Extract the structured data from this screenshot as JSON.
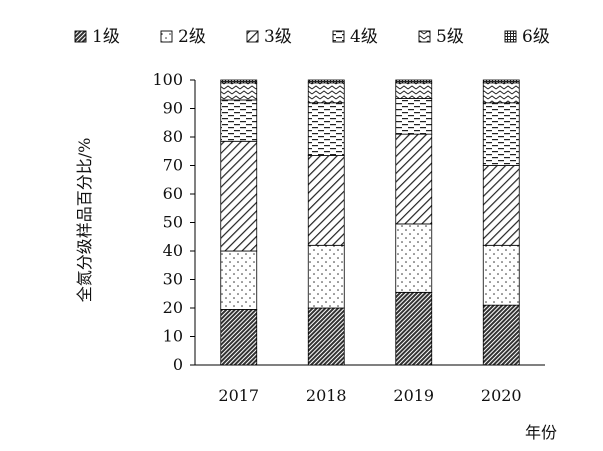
{
  "chart_data": {
    "type": "bar",
    "stacked": true,
    "title": "",
    "xlabel": "年份",
    "ylabel": "全氮分级样品百分比/%",
    "ylim": [
      0,
      100
    ],
    "yticks": [
      "0",
      "10",
      "20",
      "30",
      "40",
      "50",
      "60",
      "70",
      "80",
      "90",
      "100"
    ],
    "categories": [
      "2017",
      "2018",
      "2019",
      "2020"
    ],
    "legend_position": "top",
    "grid": false,
    "series": [
      {
        "name": "1级",
        "pattern": "dense-diagonal",
        "values": [
          19.5,
          20,
          25.5,
          21
        ]
      },
      {
        "name": "2级",
        "pattern": "dots",
        "values": [
          20.5,
          22,
          24,
          21
        ]
      },
      {
        "name": "3级",
        "pattern": "back-diagonal",
        "values": [
          38.5,
          31.5,
          31.5,
          28
        ]
      },
      {
        "name": "4级",
        "pattern": "horizontal-dashes",
        "values": [
          14.5,
          18.5,
          12.5,
          22
        ]
      },
      {
        "name": "5级",
        "pattern": "zigzag",
        "values": [
          6,
          7,
          5.5,
          7
        ]
      },
      {
        "name": "6级",
        "pattern": "grid",
        "values": [
          1,
          1,
          1,
          1
        ]
      }
    ]
  }
}
